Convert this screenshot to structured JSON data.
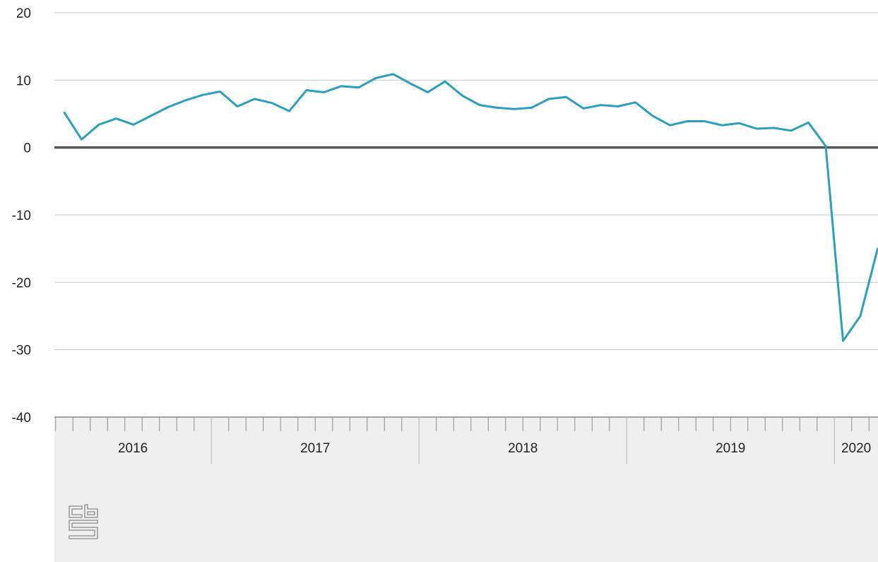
{
  "chart_data": {
    "type": "line",
    "title": "",
    "xlabel": "",
    "ylabel": "",
    "ylim": [
      -40,
      20
    ],
    "yticks": [
      20,
      10,
      0,
      -10,
      -20,
      -30,
      -40
    ],
    "grid": true,
    "x_unit": "month",
    "x_start": "2016-04",
    "year_labels": [
      "2016",
      "2017",
      "2018",
      "2019",
      "2020"
    ],
    "series": [
      {
        "name": "",
        "color": "#2b9fbf",
        "values": [
          5.2,
          1.2,
          3.4,
          4.3,
          3.4,
          4.7,
          6.0,
          7.0,
          7.8,
          8.3,
          6.1,
          7.2,
          6.6,
          5.4,
          8.5,
          8.2,
          9.1,
          8.9,
          10.3,
          10.9,
          9.5,
          8.2,
          9.8,
          7.7,
          6.3,
          5.9,
          5.7,
          5.9,
          7.2,
          7.5,
          5.8,
          6.3,
          6.1,
          6.7,
          4.7,
          3.3,
          3.9,
          3.9,
          3.3,
          3.6,
          2.8,
          2.9,
          2.5,
          3.7,
          0.2,
          -28.7,
          -25.0,
          -15.0
        ]
      }
    ]
  },
  "colors": {
    "line": "#2b9fbf",
    "zero_line": "#555555",
    "grid": "#c8c8c8",
    "axis_band": "#efefef"
  },
  "logo": {
    "name": "cbs-logo"
  }
}
